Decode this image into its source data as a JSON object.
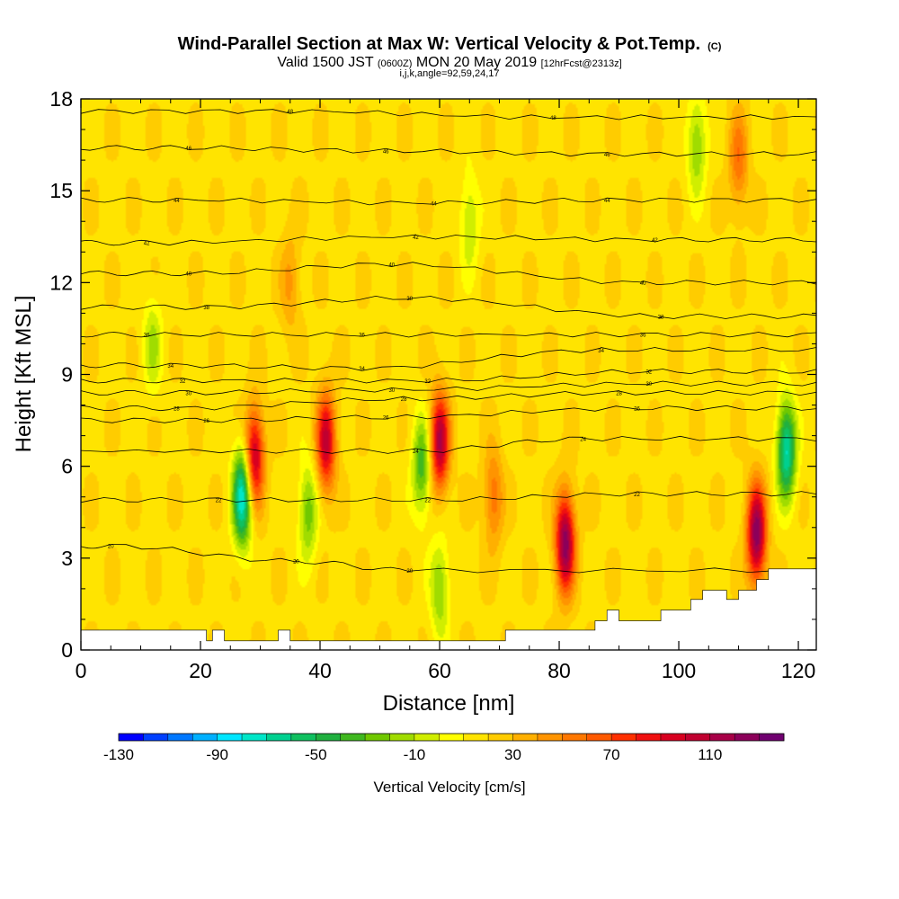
{
  "title": {
    "main": "Wind-Parallel Section at Max W: Vertical Velocity & Pot.Temp.",
    "copyright": "(C)",
    "valid_prefix": "Valid 1500 JST",
    "valid_utc": "(0600Z)",
    "valid_date": "MON 20 May 2019",
    "forecast": "[12hrFcst@2313z]",
    "params": "i,j,k,angle=92,59,24,17"
  },
  "chart_data": {
    "type": "heatmap",
    "xlabel": "Distance [nm]",
    "ylabel": "Height [Kft MSL]",
    "xlim": [
      0,
      123
    ],
    "ylim": [
      0,
      18
    ],
    "x_ticks": [
      0,
      20,
      40,
      60,
      80,
      100,
      120
    ],
    "y_ticks": [
      0,
      3,
      6,
      9,
      12,
      15,
      18
    ],
    "colorbar": {
      "label": "Vertical Velocity [cm/s]",
      "tick_labels": [
        "-130",
        "-90",
        "-50",
        "-10",
        "30",
        "70",
        "110"
      ],
      "levels": [
        -130,
        -120,
        -110,
        -100,
        -90,
        -80,
        -70,
        -60,
        -50,
        -40,
        -30,
        -20,
        -10,
        0,
        10,
        20,
        30,
        40,
        50,
        60,
        70,
        80,
        90,
        100,
        110,
        120,
        130
      ],
      "colors": [
        "#0000ff",
        "#0040ff",
        "#0078ff",
        "#00b0ff",
        "#00e6ff",
        "#00e6c8",
        "#00d090",
        "#10c060",
        "#20b040",
        "#40b820",
        "#70c800",
        "#a0dc00",
        "#d0ee00",
        "#ffff00",
        "#ffe400",
        "#ffcc00",
        "#ffb000",
        "#ff9400",
        "#ff7800",
        "#ff5a00",
        "#ff3000",
        "#f01010",
        "#d80020",
        "#c00030",
        "#a80048",
        "#8c005a",
        "#700070"
      ]
    },
    "updrafts": [
      {
        "x": 29,
        "z": 6.3,
        "w": 90
      },
      {
        "x": 41,
        "z": 6.8,
        "w": 85
      },
      {
        "x": 60,
        "z": 6.8,
        "w": 95
      },
      {
        "x": 81,
        "z": 3.5,
        "w": 110
      },
      {
        "x": 113,
        "z": 3.8,
        "w": 110
      },
      {
        "x": 110,
        "z": 16.0,
        "w": 40
      },
      {
        "x": 69,
        "z": 5.0,
        "w": 40
      },
      {
        "x": 35,
        "z": 12.0,
        "w": 25
      }
    ],
    "downdrafts": [
      {
        "x": 27,
        "z": 5.0,
        "w": -100
      },
      {
        "x": 118,
        "z": 6.5,
        "w": -90
      },
      {
        "x": 38,
        "z": 4.5,
        "w": -45
      },
      {
        "x": 57,
        "z": 6.0,
        "w": -55
      },
      {
        "x": 60,
        "z": 2.0,
        "w": -40
      },
      {
        "x": 65,
        "z": 14.0,
        "w": -30
      },
      {
        "x": 103,
        "z": 16.5,
        "w": -40
      },
      {
        "x": 12,
        "z": 10.0,
        "w": -30
      }
    ],
    "theta_contour_labels": [
      {
        "x": 35,
        "z": 17.6,
        "text": "48"
      },
      {
        "x": 79,
        "z": 17.4,
        "text": "48"
      },
      {
        "x": 18,
        "z": 16.4,
        "text": "46"
      },
      {
        "x": 51,
        "z": 16.3,
        "text": "46"
      },
      {
        "x": 88,
        "z": 16.2,
        "text": "46"
      },
      {
        "x": 16,
        "z": 14.7,
        "text": "44"
      },
      {
        "x": 59,
        "z": 14.6,
        "text": "44"
      },
      {
        "x": 88,
        "z": 14.7,
        "text": "44"
      },
      {
        "x": 11,
        "z": 13.3,
        "text": "42"
      },
      {
        "x": 56,
        "z": 13.5,
        "text": "42"
      },
      {
        "x": 96,
        "z": 13.4,
        "text": "42"
      },
      {
        "x": 18,
        "z": 12.3,
        "text": "40"
      },
      {
        "x": 52,
        "z": 12.6,
        "text": "40"
      },
      {
        "x": 94,
        "z": 12.0,
        "text": "40"
      },
      {
        "x": 21,
        "z": 11.2,
        "text": "38"
      },
      {
        "x": 55,
        "z": 11.5,
        "text": "38"
      },
      {
        "x": 97,
        "z": 10.9,
        "text": "38"
      },
      {
        "x": 11,
        "z": 10.3,
        "text": "36"
      },
      {
        "x": 47,
        "z": 10.3,
        "text": "36"
      },
      {
        "x": 94,
        "z": 10.3,
        "text": "36"
      },
      {
        "x": 15,
        "z": 9.3,
        "text": "34"
      },
      {
        "x": 47,
        "z": 9.2,
        "text": "34"
      },
      {
        "x": 87,
        "z": 9.8,
        "text": "34"
      },
      {
        "x": 17,
        "z": 8.8,
        "text": "32"
      },
      {
        "x": 58,
        "z": 8.8,
        "text": "32"
      },
      {
        "x": 95,
        "z": 9.1,
        "text": "32"
      },
      {
        "x": 18,
        "z": 8.4,
        "text": "30"
      },
      {
        "x": 52,
        "z": 8.5,
        "text": "30"
      },
      {
        "x": 95,
        "z": 8.7,
        "text": "30"
      },
      {
        "x": 16,
        "z": 7.9,
        "text": "28"
      },
      {
        "x": 54,
        "z": 8.2,
        "text": "28"
      },
      {
        "x": 90,
        "z": 8.4,
        "text": "28"
      },
      {
        "x": 21,
        "z": 7.5,
        "text": "26"
      },
      {
        "x": 51,
        "z": 7.6,
        "text": "26"
      },
      {
        "x": 93,
        "z": 7.9,
        "text": "26"
      },
      {
        "x": 84,
        "z": 6.9,
        "text": "24"
      },
      {
        "x": 56,
        "z": 6.5,
        "text": "24"
      },
      {
        "x": 23,
        "z": 4.9,
        "text": "22"
      },
      {
        "x": 58,
        "z": 4.9,
        "text": "22"
      },
      {
        "x": 93,
        "z": 5.1,
        "text": "22"
      },
      {
        "x": 5,
        "z": 3.4,
        "text": "20"
      },
      {
        "x": 36,
        "z": 2.9,
        "text": "20"
      },
      {
        "x": 55,
        "z": 2.6,
        "text": "20"
      }
    ],
    "terrain": [
      [
        0,
        0.65
      ],
      [
        21,
        0.65
      ],
      [
        21,
        0.3
      ],
      [
        22,
        0.3
      ],
      [
        22,
        0.65
      ],
      [
        24,
        0.65
      ],
      [
        24,
        0.3
      ],
      [
        33,
        0.3
      ],
      [
        33,
        0.65
      ],
      [
        35,
        0.65
      ],
      [
        35,
        0.3
      ],
      [
        71,
        0.3
      ],
      [
        71,
        0.65
      ],
      [
        86,
        0.65
      ],
      [
        86,
        0.95
      ],
      [
        88,
        0.95
      ],
      [
        88,
        1.3
      ],
      [
        90,
        1.3
      ],
      [
        90,
        0.95
      ],
      [
        97,
        0.95
      ],
      [
        97,
        1.3
      ],
      [
        102,
        1.3
      ],
      [
        102,
        1.65
      ],
      [
        104,
        1.65
      ],
      [
        104,
        1.95
      ],
      [
        108,
        1.95
      ],
      [
        108,
        1.65
      ],
      [
        110,
        1.65
      ],
      [
        110,
        1.95
      ],
      [
        113,
        1.95
      ],
      [
        113,
        2.3
      ],
      [
        115,
        2.3
      ],
      [
        115,
        2.65
      ],
      [
        123,
        2.65
      ]
    ]
  }
}
